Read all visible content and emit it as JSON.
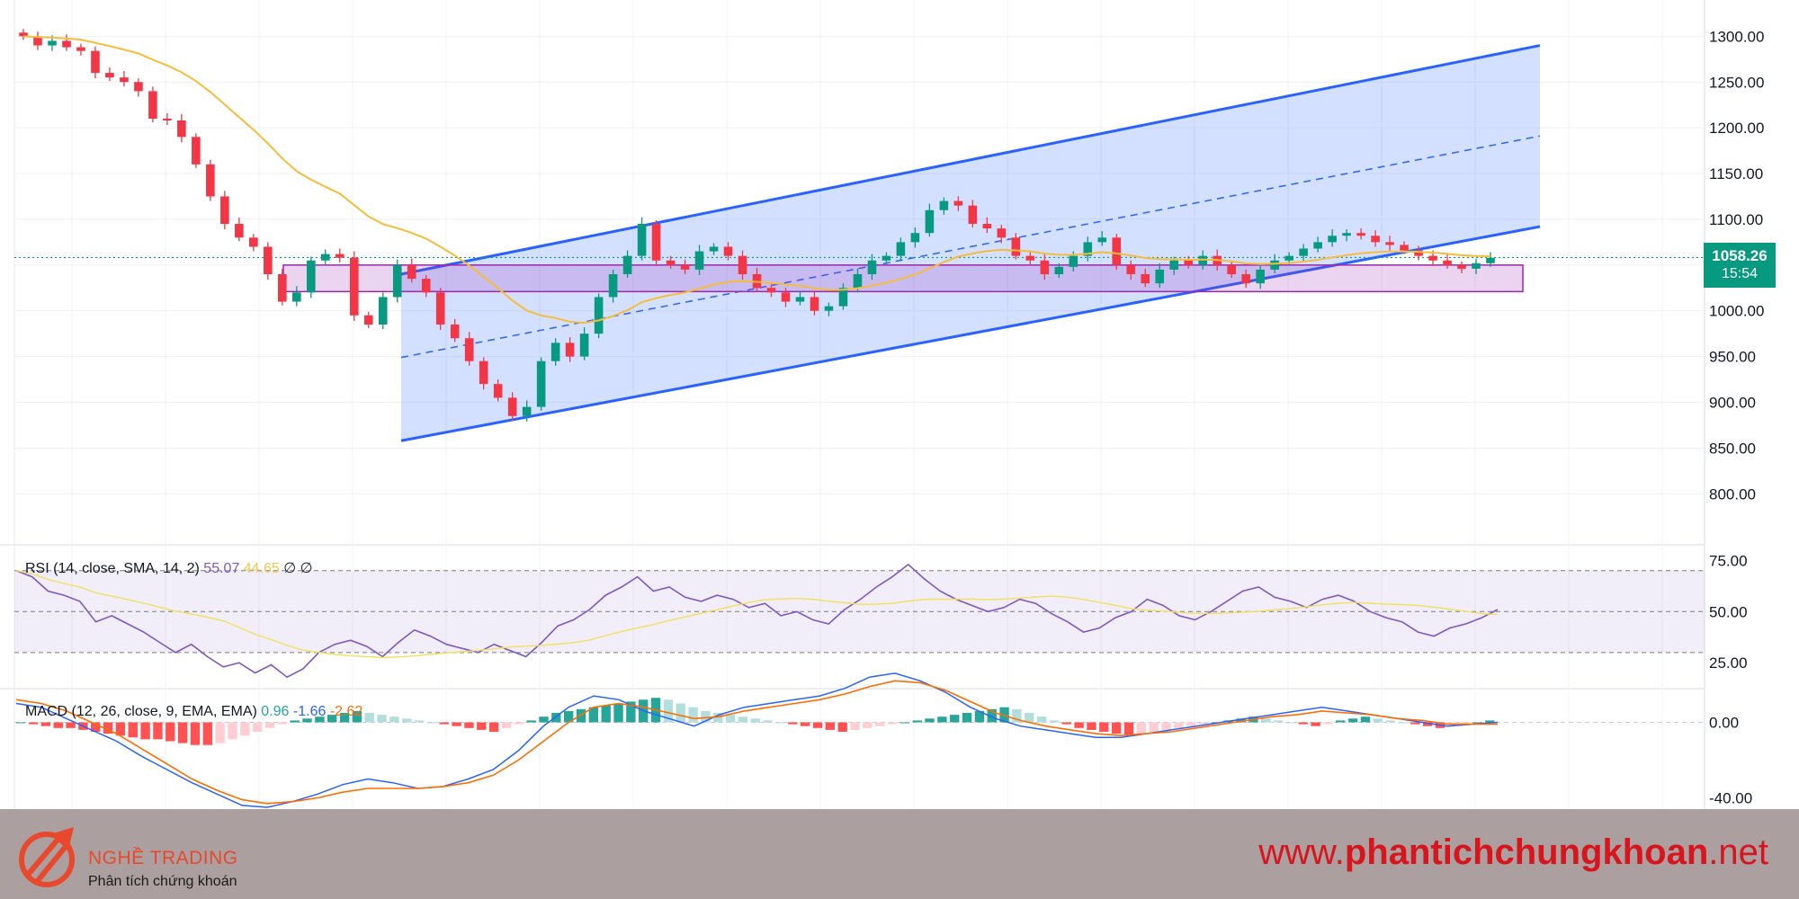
{
  "chart_data": [
    {
      "type": "candlestick",
      "title": "",
      "ylim": [
        760,
        1320
      ],
      "y_ticks": [
        "1300.00",
        "1250.00",
        "1200.00",
        "1150.00",
        "1100.00",
        "1050.00",
        "1000.00",
        "950.00",
        "900.00",
        "850.00",
        "800.00"
      ],
      "last_price": "1058.26",
      "countdown": "15:54",
      "ohlc_close": [
        1300,
        1290,
        1295,
        1288,
        1284,
        1260,
        1255,
        1250,
        1240,
        1210,
        1208,
        1190,
        1160,
        1125,
        1095,
        1080,
        1070,
        1040,
        1010,
        1020,
        1055,
        1062,
        1058,
        995,
        985,
        1015,
        1050,
        1035,
        1020,
        985,
        970,
        945,
        920,
        905,
        885,
        895,
        945,
        965,
        950,
        975,
        1015,
        1040,
        1060,
        1095,
        1055,
        1050,
        1045,
        1065,
        1070,
        1060,
        1040,
        1025,
        1020,
        1010,
        1015,
        1000,
        1005,
        1025,
        1040,
        1055,
        1060,
        1075,
        1085,
        1110,
        1120,
        1115,
        1095,
        1090,
        1080,
        1060,
        1055,
        1040,
        1048,
        1060,
        1075,
        1080,
        1050,
        1040,
        1030,
        1045,
        1055,
        1050,
        1060,
        1050,
        1040,
        1030,
        1045,
        1055,
        1060,
        1068,
        1075,
        1082,
        1085,
        1082,
        1075,
        1072,
        1066,
        1060,
        1055,
        1050,
        1046,
        1052,
        1058
      ],
      "ema_series_name": "",
      "channel": {
        "upper_start": 1040,
        "upper_end": 1290,
        "lower_start": 858,
        "lower_end": 1092,
        "mid_start": 949,
        "mid_end": 1191
      },
      "support_zone": [
        1021,
        1050
      ],
      "colors": {
        "up": "#089981",
        "down": "#f23645",
        "ema": "#f5bd3d",
        "channel": "#2962ff",
        "zone": "#9c27b0"
      }
    },
    {
      "type": "line",
      "title": "RSI (14, close, SMA, 14, 2)",
      "values_text": [
        "55.07",
        "44.65",
        "∅",
        "∅"
      ],
      "ylim": [
        15,
        80
      ],
      "y_ticks": [
        "75.00",
        "50.00",
        "25.00"
      ],
      "bands": [
        70,
        50,
        30
      ],
      "rsi_points": [
        70,
        67,
        60,
        58,
        55,
        45,
        48,
        44,
        40,
        35,
        30,
        34,
        28,
        23,
        25,
        20,
        24,
        18,
        22,
        30,
        34,
        36,
        33,
        28,
        35,
        41,
        38,
        34,
        32,
        30,
        34,
        31,
        28,
        35,
        43,
        46,
        51,
        58,
        62,
        67,
        60,
        62,
        57,
        55,
        58,
        56,
        52,
        54,
        48,
        50,
        46,
        44,
        51,
        56,
        62,
        67,
        73,
        66,
        60,
        56,
        53,
        50,
        52,
        56,
        54,
        49,
        45,
        40,
        42,
        47,
        50,
        56,
        53,
        48,
        46,
        50,
        55,
        60,
        62,
        57,
        55,
        52,
        56,
        58,
        55,
        50,
        47,
        45,
        40,
        38,
        42,
        44,
        47,
        51
      ],
      "colors": {
        "rsi": "#7e57c2",
        "sma": "#f2e05e"
      }
    },
    {
      "type": "bar",
      "title": "MACD (12, 26, close, 9, EMA, EMA)",
      "values_text": [
        "0.96",
        "-1.66",
        "-2.62"
      ],
      "ylim": [
        -45,
        15
      ],
      "y_ticks": [
        "0.00",
        "-40.00"
      ],
      "histogram": [
        0,
        -1,
        -2,
        -3,
        -3,
        -4,
        -5,
        -6,
        -7,
        -8,
        -9,
        -9,
        -10,
        -11,
        -12,
        -12,
        -11,
        -9,
        -7,
        -5,
        -3,
        -1,
        1,
        2,
        3,
        4,
        5,
        6,
        5,
        4,
        3,
        2,
        1,
        0,
        -1,
        -2,
        -3,
        -4,
        -5,
        -3,
        -1,
        1,
        3,
        5,
        6,
        7,
        8,
        9,
        10,
        11,
        12,
        13,
        12,
        10,
        8,
        6,
        5,
        4,
        3,
        2,
        1,
        0,
        -1,
        -2,
        -3,
        -4,
        -5,
        -4,
        -3,
        -2,
        -1,
        0,
        1,
        2,
        3,
        4,
        5,
        6,
        7,
        8,
        7,
        5,
        3,
        1,
        -1,
        -3,
        -4,
        -5,
        -6,
        -7,
        -6,
        -5,
        -4,
        -3,
        -2,
        -1,
        0,
        1,
        2,
        3,
        2,
        1,
        0,
        -1,
        -2,
        -1,
        1,
        2,
        3,
        2,
        1,
        0,
        -1,
        -2,
        -3,
        -2,
        -1,
        0,
        1
      ],
      "macd": [
        10,
        8,
        2,
        -4,
        -10,
        -18,
        -25,
        -32,
        -38,
        -44,
        -45,
        -42,
        -38,
        -33,
        -30,
        -32,
        -35,
        -34,
        -30,
        -25,
        -15,
        -2,
        8,
        14,
        12,
        6,
        2,
        -2,
        4,
        8,
        10,
        12,
        14,
        18,
        24,
        26,
        22,
        16,
        8,
        2,
        -2,
        -4,
        -6,
        -8,
        -8,
        -6,
        -4,
        -2,
        0,
        2,
        4,
        6,
        8,
        6,
        4,
        2,
        0,
        -2,
        -1,
        0
      ],
      "signal": [
        12,
        10,
        6,
        0,
        -6,
        -14,
        -22,
        -30,
        -36,
        -41,
        -43,
        -42,
        -40,
        -37,
        -35,
        -35,
        -35,
        -34,
        -32,
        -28,
        -20,
        -10,
        0,
        8,
        10,
        8,
        5,
        2,
        3,
        6,
        8,
        10,
        12,
        15,
        19,
        22,
        21,
        17,
        11,
        5,
        1,
        -2,
        -4,
        -6,
        -7,
        -6,
        -5,
        -3,
        -1,
        1,
        3,
        4,
        6,
        5,
        4,
        2,
        1,
        -1,
        -1,
        -1
      ],
      "colors": {
        "macd": "#2962ff",
        "signal": "#ff6d00",
        "hist_up": "#26a69a",
        "hist_up_light": "#b2dfdb",
        "hist_down": "#ff5252",
        "hist_down_light": "#ffcdd2"
      }
    }
  ],
  "branding": {
    "name": "NGHỀ TRADING",
    "tagline": "Phân tích chứng khoán",
    "url_prefix": "www.",
    "url_main": "phantichchungkhoan",
    "url_suffix": ".net"
  }
}
